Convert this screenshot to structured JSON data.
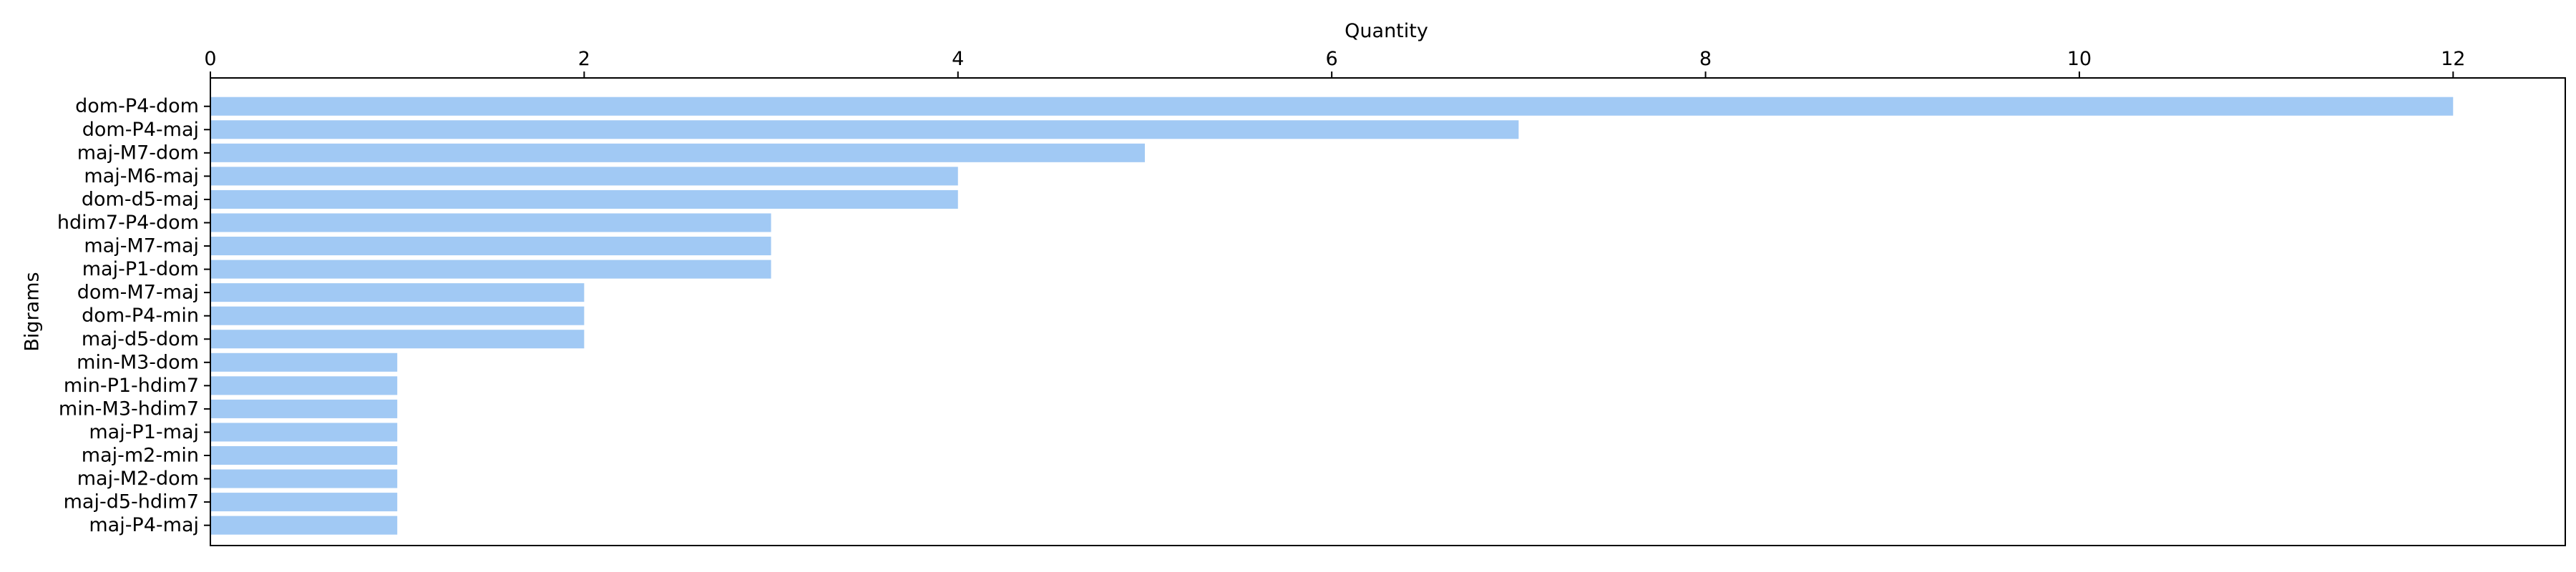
{
  "chart_data": {
    "type": "bar",
    "orientation": "horizontal",
    "xlabel": "Quantity",
    "ylabel": "Bigrams",
    "xaxis_position": "top",
    "xlim": [
      0,
      12.6
    ],
    "xticks": [
      0,
      2,
      4,
      6,
      8,
      10,
      12
    ],
    "grid": false,
    "legend": "none",
    "bar_color": "#a1c9f4",
    "categories": [
      "dom-P4-dom",
      "dom-P4-maj",
      "maj-M7-dom",
      "maj-M6-maj",
      "dom-d5-maj",
      "hdim7-P4-dom",
      "maj-M7-maj",
      "maj-P1-dom",
      "dom-M7-maj",
      "dom-P4-min",
      "maj-d5-dom",
      "min-M3-dom",
      "min-P1-hdim7",
      "min-M3-hdim7",
      "maj-P1-maj",
      "maj-m2-min",
      "maj-M2-dom",
      "maj-d5-hdim7",
      "maj-P4-maj"
    ],
    "values": [
      12,
      7,
      5,
      4,
      4,
      3,
      3,
      3,
      2,
      2,
      2,
      1,
      1,
      1,
      1,
      1,
      1,
      1,
      1
    ]
  }
}
